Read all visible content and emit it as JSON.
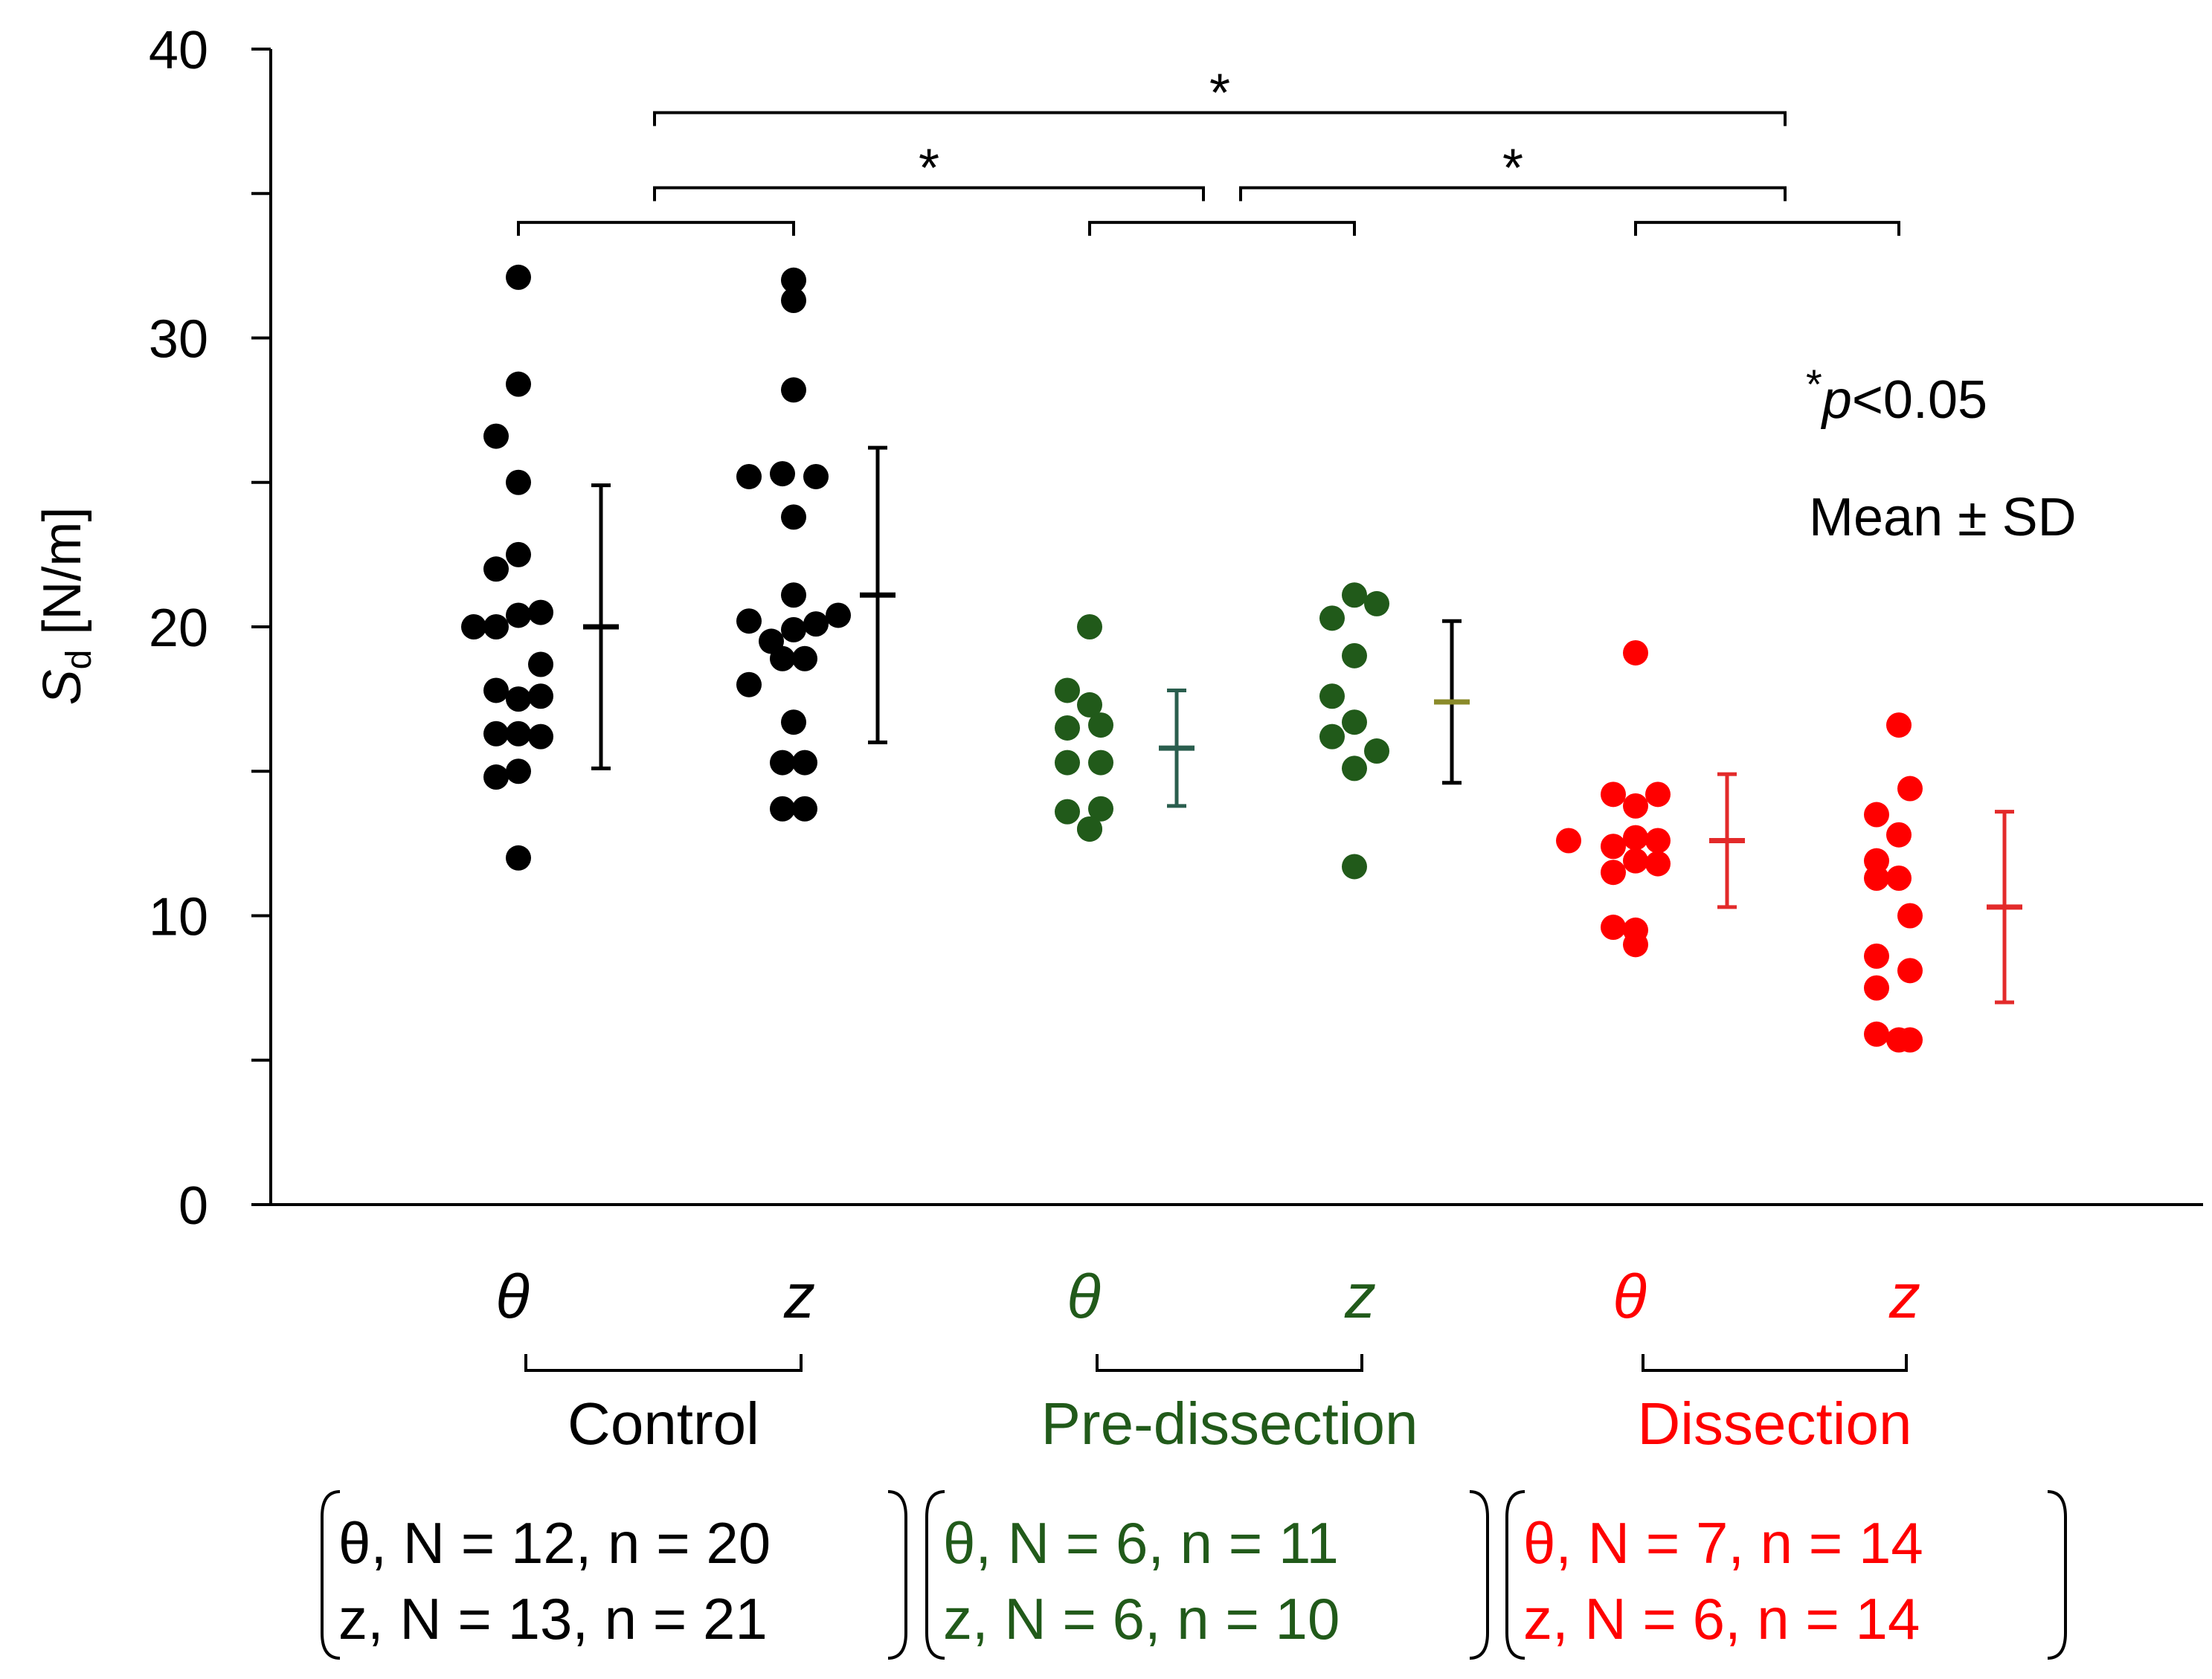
{
  "chart_data": {
    "type": "scatter",
    "title": "",
    "xlabel": "",
    "ylabel_main": "S",
    "ylabel_sub": "d",
    "ylabel_unit": " [N/m]",
    "ylim": [
      0,
      40
    ],
    "yticks": [
      0,
      10,
      20,
      30,
      40
    ],
    "minor_ticks": [
      5,
      15,
      25,
      35
    ],
    "groups": [
      {
        "name": "Control",
        "color": "#000000",
        "series": [
          {
            "symbol": "θ",
            "err_color": "#000000",
            "mean": 20.0,
            "sd": 4.9,
            "points": [
              {
                "dx": 0,
                "y": 32.1
              },
              {
                "dx": 0,
                "y": 28.4
              },
              {
                "dx": -1,
                "y": 26.6
              },
              {
                "dx": 0,
                "y": 25.0
              },
              {
                "dx": 0,
                "y": 22.5
              },
              {
                "dx": -1,
                "y": 22.0
              },
              {
                "dx": -2,
                "y": 20.0
              },
              {
                "dx": -1,
                "y": 20.0
              },
              {
                "dx": 0,
                "y": 20.4
              },
              {
                "dx": 1,
                "y": 20.5
              },
              {
                "dx": 1,
                "y": 18.7
              },
              {
                "dx": -1,
                "y": 17.8
              },
              {
                "dx": 0,
                "y": 17.5
              },
              {
                "dx": 1,
                "y": 17.6
              },
              {
                "dx": -1,
                "y": 16.3
              },
              {
                "dx": 0,
                "y": 16.3
              },
              {
                "dx": 1,
                "y": 16.2
              },
              {
                "dx": -1,
                "y": 14.8
              },
              {
                "dx": 0,
                "y": 15.0
              },
              {
                "dx": 0,
                "y": 12.0
              }
            ]
          },
          {
            "symbol": "z",
            "err_color": "#000000",
            "mean": 21.1,
            "sd": 5.1,
            "points": [
              {
                "dx": 0,
                "y": 32.0
              },
              {
                "dx": 0,
                "y": 31.3
              },
              {
                "dx": 0,
                "y": 28.2
              },
              {
                "dx": -2,
                "y": 25.2
              },
              {
                "dx": -0.5,
                "y": 25.3
              },
              {
                "dx": 1,
                "y": 25.2
              },
              {
                "dx": 0,
                "y": 23.8
              },
              {
                "dx": 0,
                "y": 21.1
              },
              {
                "dx": -2,
                "y": 20.2
              },
              {
                "dx": -1,
                "y": 19.5
              },
              {
                "dx": 0,
                "y": 19.9
              },
              {
                "dx": 1,
                "y": 20.1
              },
              {
                "dx": 2,
                "y": 20.4
              },
              {
                "dx": -0.5,
                "y": 18.9
              },
              {
                "dx": 0.5,
                "y": 18.9
              },
              {
                "dx": -2,
                "y": 18.0
              },
              {
                "dx": 0,
                "y": 16.7
              },
              {
                "dx": -0.5,
                "y": 15.3
              },
              {
                "dx": 0.5,
                "y": 15.3
              },
              {
                "dx": -0.5,
                "y": 13.7
              },
              {
                "dx": 0.5,
                "y": 13.7
              }
            ]
          }
        ]
      },
      {
        "name": "Pre-dissection",
        "color": "#215A1A",
        "series": [
          {
            "symbol": "θ",
            "err_color": "#2A5E4E",
            "mean": 15.8,
            "sd": 2.0,
            "points": [
              {
                "dx": 0,
                "y": 20.0
              },
              {
                "dx": -1,
                "y": 17.8
              },
              {
                "dx": 0,
                "y": 17.3
              },
              {
                "dx": 0.5,
                "y": 16.6
              },
              {
                "dx": -1,
                "y": 16.5
              },
              {
                "dx": -1,
                "y": 15.3
              },
              {
                "dx": 0.5,
                "y": 15.3
              },
              {
                "dx": -1,
                "y": 13.6
              },
              {
                "dx": 0.5,
                "y": 13.7
              },
              {
                "dx": 0,
                "y": 13.0
              },
              {
                "dx": 0,
                "y": 13.0
              }
            ]
          },
          {
            "symbol": "z",
            "err_color": "#000000",
            "mean_color": "#8A8A2A",
            "mean": 17.4,
            "sd": 2.8,
            "points": [
              {
                "dx": -1,
                "y": 20.3
              },
              {
                "dx": 0,
                "y": 21.1
              },
              {
                "dx": 1,
                "y": 20.8
              },
              {
                "dx": 0,
                "y": 19.0
              },
              {
                "dx": -1,
                "y": 17.6
              },
              {
                "dx": -1,
                "y": 16.2
              },
              {
                "dx": 0,
                "y": 16.7
              },
              {
                "dx": 1,
                "y": 15.7
              },
              {
                "dx": 0,
                "y": 15.1
              },
              {
                "dx": 0,
                "y": 11.7
              }
            ]
          }
        ]
      },
      {
        "name": "Dissection",
        "color": "#FF0000",
        "series": [
          {
            "symbol": "θ",
            "err_color": "#E32A2A",
            "mean": 12.6,
            "sd": 2.3,
            "points": [
              {
                "dx": 0,
                "y": 19.1
              },
              {
                "dx": -1,
                "y": 14.2
              },
              {
                "dx": 1,
                "y": 14.2
              },
              {
                "dx": 0,
                "y": 13.8
              },
              {
                "dx": -3,
                "y": 12.6
              },
              {
                "dx": -1,
                "y": 12.4
              },
              {
                "dx": 0,
                "y": 12.7
              },
              {
                "dx": 1,
                "y": 12.6
              },
              {
                "dx": -1,
                "y": 11.5
              },
              {
                "dx": 0,
                "y": 11.9
              },
              {
                "dx": 1,
                "y": 11.8
              },
              {
                "dx": -1,
                "y": 9.6
              },
              {
                "dx": 0,
                "y": 9.5
              },
              {
                "dx": 0,
                "y": 9.0
              }
            ]
          },
          {
            "symbol": "z",
            "err_color": "#E32A2A",
            "mean": 10.3,
            "sd": 3.3,
            "points": [
              {
                "dx": 0,
                "y": 16.6
              },
              {
                "dx": 0.5,
                "y": 14.4
              },
              {
                "dx": -1,
                "y": 13.5
              },
              {
                "dx": 0,
                "y": 12.8
              },
              {
                "dx": -1,
                "y": 11.9
              },
              {
                "dx": 0,
                "y": 11.3
              },
              {
                "dx": -1,
                "y": 11.3
              },
              {
                "dx": 0.5,
                "y": 10.0
              },
              {
                "dx": -1,
                "y": 8.6
              },
              {
                "dx": 0.5,
                "y": 8.1
              },
              {
                "dx": -1,
                "y": 7.5
              },
              {
                "dx": -1,
                "y": 5.9
              },
              {
                "dx": 0,
                "y": 5.7
              },
              {
                "dx": 0.5,
                "y": 5.7
              }
            ]
          }
        ]
      }
    ],
    "sample_sizes": [
      {
        "theta": "θ, N = 12, n = 20",
        "z": "z, N = 13, n = 21"
      },
      {
        "theta": "θ, N = 6, n = 11",
        "z": "z, N = 6, n = 10"
      },
      {
        "theta": "θ, N = 7, n = 14",
        "z": "z, N = 6, n = 14"
      }
    ],
    "annotations": {
      "pvalue_star": "*",
      "pvalue_p": "p",
      "pvalue_rest": "<0.05",
      "stat_label": "Mean ± SD"
    },
    "significance": [
      {
        "from": "Control",
        "to": "Dissection",
        "y": 37.8,
        "label": "*"
      },
      {
        "from": "Control",
        "to": "Pre-dissection",
        "y": 35.2,
        "label": "*"
      },
      {
        "from": "Pre-dissection",
        "to": "Dissection",
        "y": 35.2,
        "label": "*"
      }
    ]
  }
}
